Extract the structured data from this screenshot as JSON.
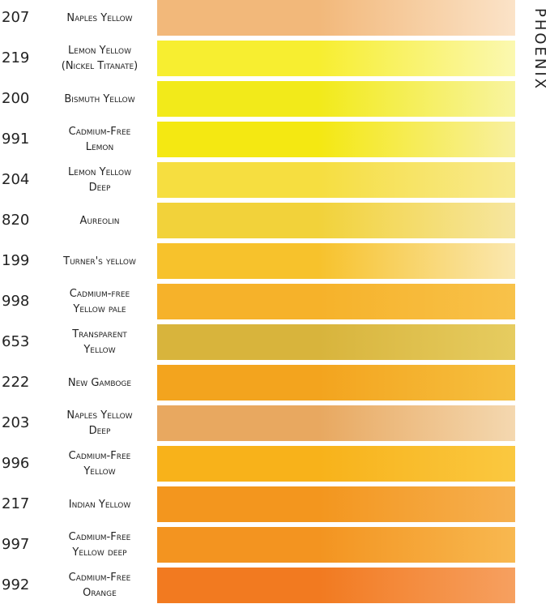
{
  "brand": "PHOENIX",
  "swatches": [
    {
      "code": "207",
      "name": [
        "Naples Yellow"
      ],
      "colors": [
        "#f2b87a",
        "#fbe3c8"
      ]
    },
    {
      "code": "219",
      "name": [
        "Lemon Yellow",
        "(Nickel Titanate)"
      ],
      "colors": [
        "#f7ee30",
        "#fbf8b0"
      ]
    },
    {
      "code": "200",
      "name": [
        "Bismuth Yellow"
      ],
      "colors": [
        "#f2ea1a",
        "#f8f4a0"
      ]
    },
    {
      "code": "991",
      "name": [
        "Cadmium-Free",
        "Lemon"
      ],
      "colors": [
        "#f4e812",
        "#f8f0a0"
      ]
    },
    {
      "code": "204",
      "name": [
        "Lemon Yellow",
        "Deep"
      ],
      "colors": [
        "#f6de40",
        "#f8ea90"
      ]
    },
    {
      "code": "820",
      "name": [
        "Aureolin"
      ],
      "colors": [
        "#f2d23a",
        "#f6e6a0"
      ]
    },
    {
      "code": "199",
      "name": [
        "Turner's yellow"
      ],
      "colors": [
        "#f7c22c",
        "#fae8b0"
      ]
    },
    {
      "code": "998",
      "name": [
        "Cadmium-free",
        "Yellow pale"
      ],
      "colors": [
        "#f6b22a",
        "#f8c24a"
      ]
    },
    {
      "code": "653",
      "name": [
        "Transparent",
        "Yellow"
      ],
      "colors": [
        "#d8b43c",
        "#e6cc60"
      ]
    },
    {
      "code": "222",
      "name": [
        "New Gamboge"
      ],
      "colors": [
        "#f3a41e",
        "#f6c040"
      ]
    },
    {
      "code": "203",
      "name": [
        "Naples Yellow",
        "Deep"
      ],
      "colors": [
        "#e8a860",
        "#f4d8b0"
      ]
    },
    {
      "code": "996",
      "name": [
        "Cadmium-Free",
        "Yellow"
      ],
      "colors": [
        "#f8b21a",
        "#fac840"
      ]
    },
    {
      "code": "217",
      "name": [
        "Indian Yellow"
      ],
      "colors": [
        "#f3961e",
        "#f6b050"
      ]
    },
    {
      "code": "997",
      "name": [
        "Cadmium-Free",
        "Yellow deep"
      ],
      "colors": [
        "#f39420",
        "#f8b850"
      ]
    },
    {
      "code": "992",
      "name": [
        "Cadmium-Free",
        "Orange"
      ],
      "colors": [
        "#f27a20",
        "#f6a060"
      ]
    }
  ]
}
